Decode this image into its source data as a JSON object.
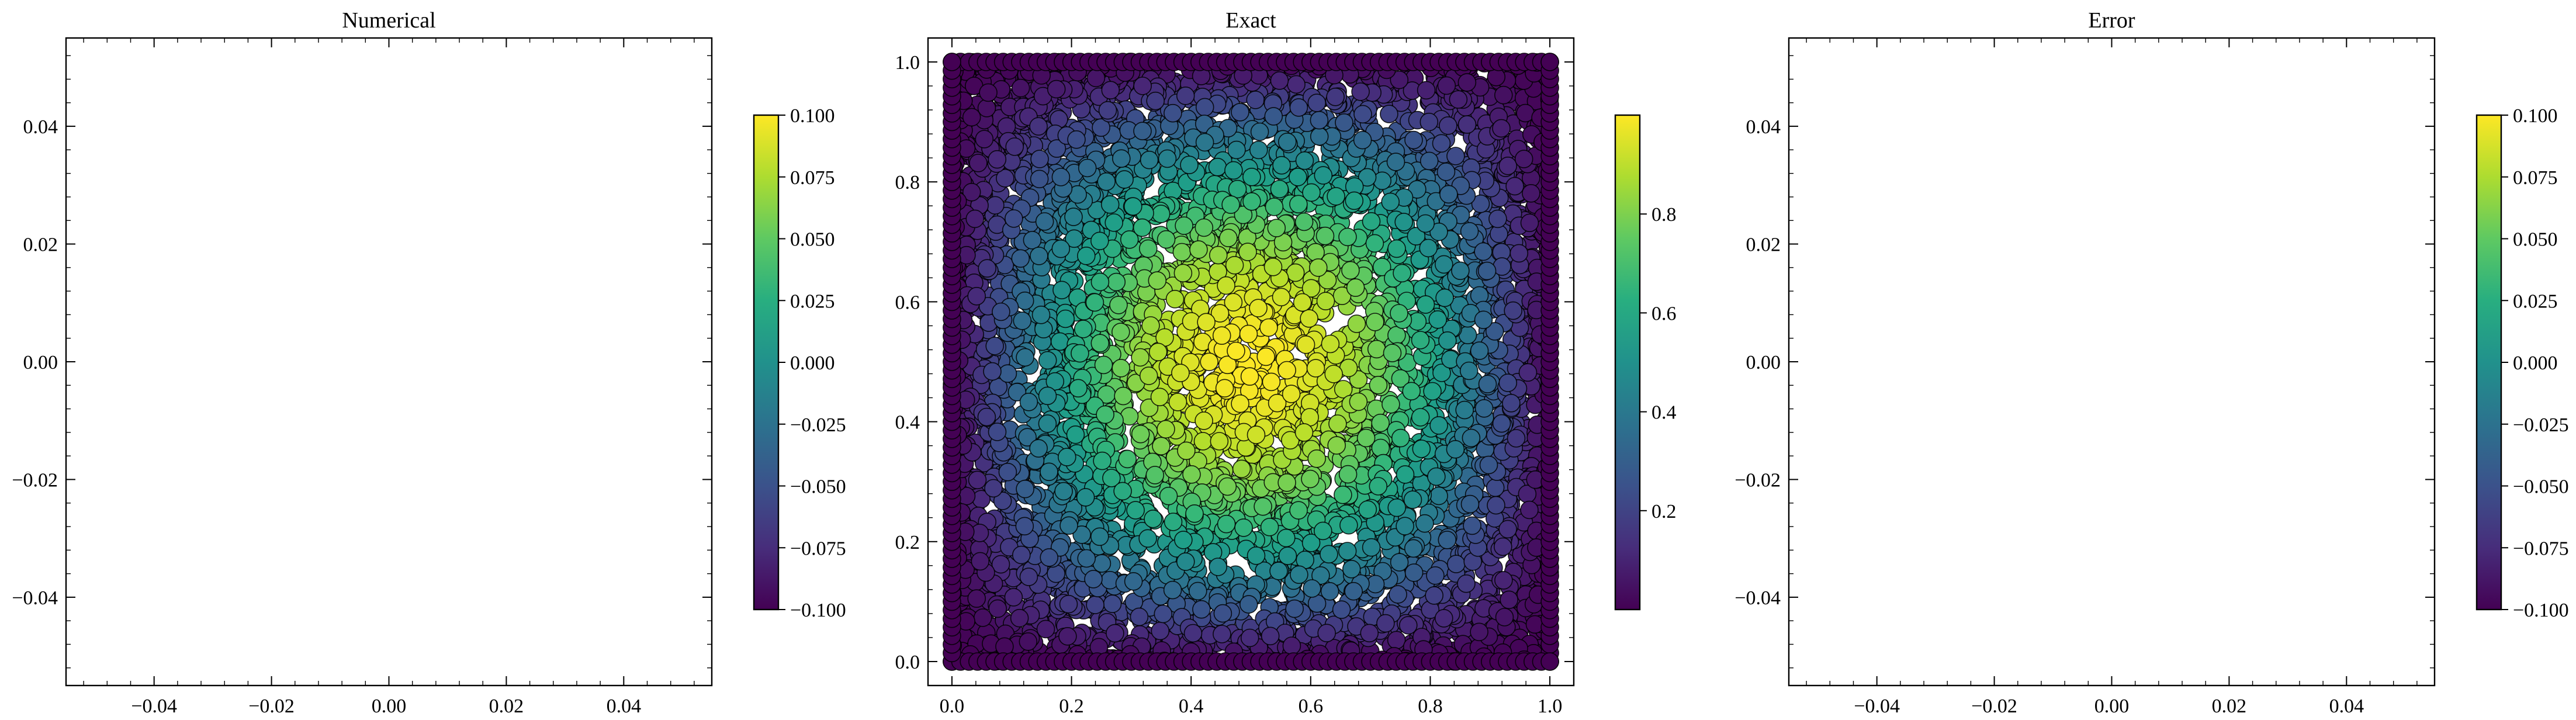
{
  "chart_data": [
    {
      "type": "scatter",
      "title": "Numerical",
      "xlabel": "",
      "ylabel": "",
      "xlim": [
        -0.055,
        0.055
      ],
      "ylim": [
        -0.055,
        0.055
      ],
      "xticks": [
        -0.04,
        -0.02,
        0.0,
        0.02,
        0.04
      ],
      "xtick_labels": [
        "−0.04",
        "−0.02",
        "0.00",
        "0.02",
        "0.04"
      ],
      "yticks": [
        -0.04,
        -0.02,
        0.0,
        0.02,
        0.04
      ],
      "ytick_labels": [
        "−0.04",
        "−0.02",
        "0.00",
        "0.02",
        "0.04"
      ],
      "points": [],
      "colormap": "viridis",
      "colorbar": {
        "min": -0.1,
        "max": 0.1,
        "ticks": [
          -0.1,
          -0.075,
          -0.05,
          -0.025,
          0.0,
          0.025,
          0.05,
          0.075,
          0.1
        ],
        "tick_labels": [
          "−0.100",
          "−0.075",
          "−0.050",
          "−0.025",
          "0.000",
          "0.025",
          "0.050",
          "0.075",
          "0.100"
        ]
      }
    },
    {
      "type": "scatter",
      "title": "Exact",
      "xlabel": "",
      "ylabel": "",
      "xlim": [
        -0.04,
        1.04
      ],
      "ylim": [
        -0.04,
        1.04
      ],
      "xticks": [
        0.0,
        0.2,
        0.4,
        0.6,
        0.8,
        1.0
      ],
      "xtick_labels": [
        "0.0",
        "0.2",
        "0.4",
        "0.6",
        "0.8",
        "1.0"
      ],
      "yticks": [
        0.0,
        0.2,
        0.4,
        0.6,
        0.8,
        1.0
      ],
      "ytick_labels": [
        "0.0",
        "0.2",
        "0.4",
        "0.6",
        "0.8",
        "1.0"
      ],
      "domain": {
        "x": [
          0.0,
          1.0
        ],
        "y": [
          0.0,
          1.0
        ]
      },
      "point_count": 5000,
      "value_function": "sin(pi*x)*sin(pi*y)",
      "value_range": [
        0.0,
        1.0
      ],
      "colormap": "viridis",
      "colorbar": {
        "min": 0.0,
        "max": 1.0,
        "ticks": [
          0.2,
          0.4,
          0.6,
          0.8
        ],
        "tick_labels": [
          "0.2",
          "0.4",
          "0.6",
          "0.8"
        ]
      }
    },
    {
      "type": "scatter",
      "title": "Error",
      "xlabel": "",
      "ylabel": "",
      "xlim": [
        -0.055,
        0.055
      ],
      "ylim": [
        -0.055,
        0.055
      ],
      "xticks": [
        -0.04,
        -0.02,
        0.0,
        0.02,
        0.04
      ],
      "xtick_labels": [
        "−0.04",
        "−0.02",
        "0.00",
        "0.02",
        "0.04"
      ],
      "yticks": [
        -0.04,
        -0.02,
        0.0,
        0.02,
        0.04
      ],
      "ytick_labels": [
        "−0.04",
        "−0.02",
        "0.00",
        "0.02",
        "0.04"
      ],
      "points": [],
      "colormap": "viridis",
      "colorbar": {
        "min": -0.1,
        "max": 0.1,
        "ticks": [
          -0.1,
          -0.075,
          -0.05,
          -0.025,
          0.0,
          0.025,
          0.05,
          0.075,
          0.1
        ],
        "tick_labels": [
          "−0.100",
          "−0.075",
          "−0.050",
          "−0.025",
          "0.000",
          "0.025",
          "0.050",
          "0.075",
          "0.100"
        ]
      }
    }
  ]
}
